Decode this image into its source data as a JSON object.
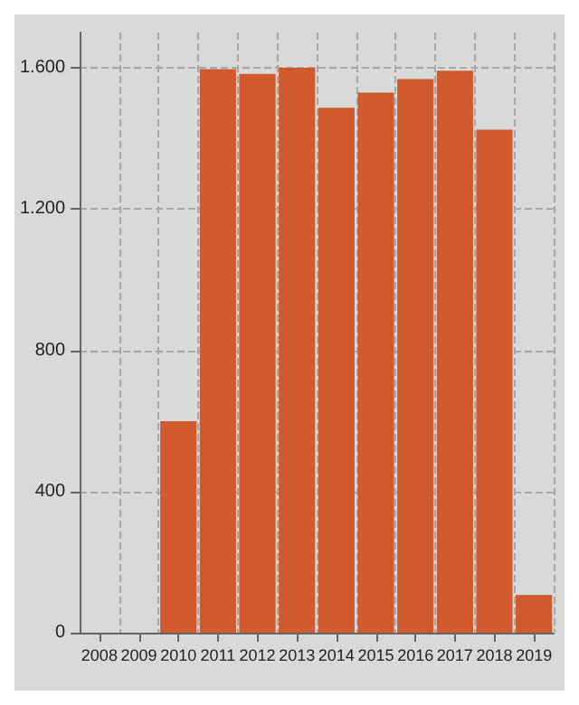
{
  "chart_data": {
    "type": "bar",
    "categories": [
      "2008",
      "2009",
      "2010",
      "2011",
      "2012",
      "2013",
      "2014",
      "2015",
      "2016",
      "2017",
      "2018",
      "2019"
    ],
    "values": [
      0,
      0,
      599,
      1596,
      1583,
      1600,
      1487,
      1530,
      1568,
      1592,
      1425,
      107
    ],
    "color": "#d05a2c",
    "ylim": [
      0,
      1700
    ],
    "yticks": [
      0,
      400,
      800,
      {
        "value": 1200,
        "label": "1.200"
      },
      {
        "value": 1600,
        "label": "1.600"
      }
    ],
    "grid": true
  }
}
